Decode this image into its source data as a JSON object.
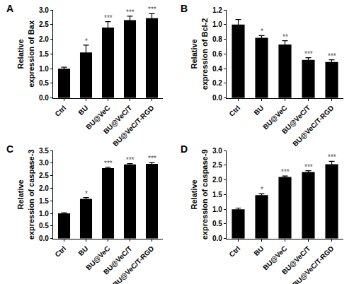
{
  "chart_data": [
    {
      "type": "bar",
      "panel": "A",
      "y_label": [
        "Relative",
        "expression of Bax"
      ],
      "categories": [
        "Ctrl",
        "BU",
        "BU@VeC",
        "BU@VeC/T",
        "BU@VeC/T-RGD"
      ],
      "values": [
        1.0,
        1.55,
        2.4,
        2.65,
        2.72
      ],
      "errors": [
        0.05,
        0.25,
        0.2,
        0.14,
        0.15
      ],
      "significance": [
        null,
        "*",
        "***",
        "***",
        "***"
      ],
      "color": "#000000",
      "ylim": [
        0,
        3
      ],
      "yticks": [
        {
          "value": 0,
          "label": "0.0"
        },
        0.5,
        {
          "value": 1,
          "label": "1.0"
        },
        1.5,
        {
          "value": 2,
          "label": "2.0"
        },
        2.5,
        {
          "value": 3,
          "label": "3.0"
        }
      ],
      "grid": false
    },
    {
      "type": "bar",
      "panel": "B",
      "y_label": [
        "Relative",
        "expression of Bcl-2"
      ],
      "categories": [
        "Ctrl",
        "BU",
        "BU@VeC",
        "BU@VeC/T",
        "BU@VeC/T-RGD"
      ],
      "values": [
        1.0,
        0.82,
        0.73,
        0.52,
        0.49
      ],
      "errors": [
        0.07,
        0.03,
        0.05,
        0.03,
        0.03
      ],
      "significance": [
        null,
        "*",
        "**",
        "***",
        "***"
      ],
      "color": "#000000",
      "ylim": [
        0,
        1.2
      ],
      "yticks": [
        {
          "value": 0,
          "label": "0.0"
        },
        0.2,
        0.4,
        0.6,
        0.8,
        {
          "value": 1,
          "label": "1.0"
        },
        1.2
      ],
      "grid": false
    },
    {
      "type": "bar",
      "panel": "C",
      "y_label": [
        "Relative",
        "expression of caspase-3"
      ],
      "categories": [
        "Ctrl",
        "BU",
        "BU@VeC",
        "BU@VeC/T",
        "BU@VeC/T-RGD"
      ],
      "values": [
        1.0,
        1.58,
        2.8,
        2.95,
        2.97
      ],
      "errors": [
        0.03,
        0.05,
        0.04,
        0.03,
        0.05
      ],
      "significance": [
        null,
        "*",
        "***",
        "***",
        "***"
      ],
      "color": "#000000",
      "ylim": [
        0,
        3.5
      ],
      "yticks": [
        {
          "value": 0,
          "label": "0.0"
        },
        0.5,
        {
          "value": 1,
          "label": "1.0"
        },
        1.5,
        {
          "value": 2,
          "label": "2.0"
        },
        2.5,
        {
          "value": 3,
          "label": "3.0"
        },
        3.5
      ],
      "grid": false
    },
    {
      "type": "bar",
      "panel": "D",
      "y_label": [
        "Relative",
        "expression of caspase-9"
      ],
      "categories": [
        "Ctrl",
        "BU",
        "BU@VeC",
        "BU@VeC/T",
        "BU@VeC/T-RGD"
      ],
      "values": [
        1.0,
        1.48,
        2.1,
        2.27,
        2.53
      ],
      "errors": [
        0.04,
        0.05,
        0.03,
        0.04,
        0.1
      ],
      "significance": [
        null,
        "*",
        "***",
        "***",
        "***"
      ],
      "color": "#000000",
      "ylim": [
        0,
        3
      ],
      "yticks": [
        {
          "value": 0,
          "label": "0.0"
        },
        0.5,
        {
          "value": 1,
          "label": "1.0"
        },
        1.5,
        {
          "value": 2,
          "label": "2.0"
        },
        2.5,
        {
          "value": 3,
          "label": "3.0"
        }
      ],
      "grid": false
    }
  ]
}
